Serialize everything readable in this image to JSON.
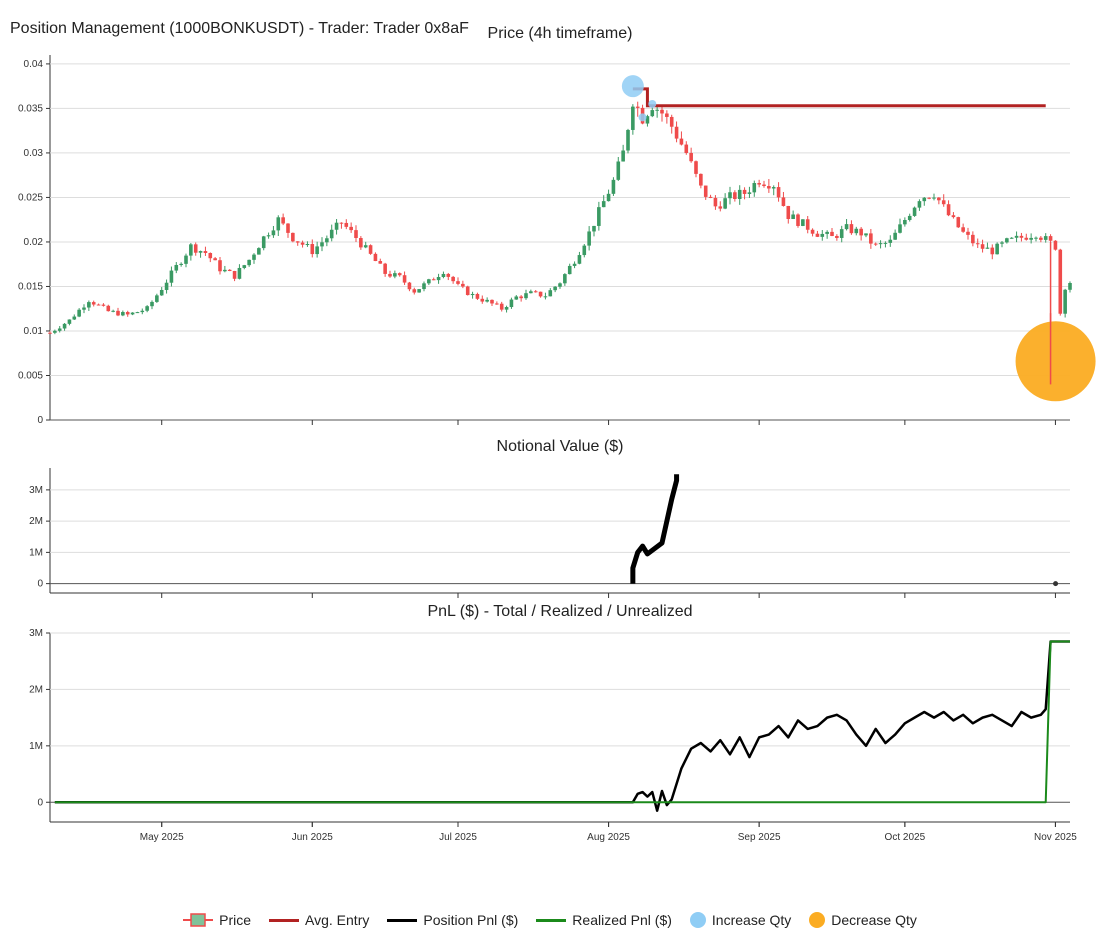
{
  "page_title": "Position Management (1000BONKUSDT) - Trader: Trader 0x8aF",
  "colors": {
    "up": "#3a9a63",
    "down": "#ef4b4b",
    "avg_entry": "#b22222",
    "position_pnl": "#000000",
    "realized_pnl": "#1b8a1b",
    "increase": "#8fcdf5",
    "decrease": "#fbac22",
    "grid": "#dddddd",
    "axis": "#333333"
  },
  "x_axis": {
    "ticks": [
      "May 2025",
      "Jun 2025",
      "Jul 2025",
      "Aug 2025",
      "Sep 2025",
      "Oct 2025",
      "Nov 2025"
    ],
    "tick_dates": [
      "2025-05-01",
      "2025-06-01",
      "2025-07-01",
      "2025-08-01",
      "2025-09-01",
      "2025-10-01",
      "2025-11-01"
    ],
    "range": [
      "2025-04-08",
      "2025-11-04"
    ]
  },
  "chart_data": [
    {
      "type": "candlestick",
      "title": "Price (4h timeframe)",
      "ylim": [
        0,
        0.041
      ],
      "yticks": [
        "0",
        "0.005",
        "0.01",
        "0.015",
        "0.02",
        "0.025",
        "0.03",
        "0.035",
        "0.04"
      ],
      "ytick_values": [
        0,
        0.005,
        0.01,
        0.015,
        0.02,
        0.025,
        0.03,
        0.035,
        0.04
      ],
      "price_points": [
        [
          "2025-04-08",
          0.0098
        ],
        [
          "2025-04-12",
          0.0112
        ],
        [
          "2025-04-16",
          0.0135
        ],
        [
          "2025-04-20",
          0.0122
        ],
        [
          "2025-04-24",
          0.0118
        ],
        [
          "2025-04-28",
          0.0125
        ],
        [
          "2025-05-01",
          0.0148
        ],
        [
          "2025-05-04",
          0.0172
        ],
        [
          "2025-05-07",
          0.0195
        ],
        [
          "2025-05-10",
          0.0188
        ],
        [
          "2025-05-13",
          0.017
        ],
        [
          "2025-05-16",
          0.0162
        ],
        [
          "2025-05-19",
          0.018
        ],
        [
          "2025-05-22",
          0.0205
        ],
        [
          "2025-05-25",
          0.0225
        ],
        [
          "2025-05-28",
          0.0205
        ],
        [
          "2025-06-01",
          0.019
        ],
        [
          "2025-06-04",
          0.0205
        ],
        [
          "2025-06-07",
          0.0222
        ],
        [
          "2025-06-10",
          0.0205
        ],
        [
          "2025-06-13",
          0.0185
        ],
        [
          "2025-06-16",
          0.0165
        ],
        [
          "2025-06-19",
          0.016
        ],
        [
          "2025-06-22",
          0.0145
        ],
        [
          "2025-06-25",
          0.0155
        ],
        [
          "2025-06-28",
          0.0168
        ],
        [
          "2025-07-01",
          0.015
        ],
        [
          "2025-07-04",
          0.014
        ],
        [
          "2025-07-07",
          0.0133
        ],
        [
          "2025-07-10",
          0.0125
        ],
        [
          "2025-07-13",
          0.0138
        ],
        [
          "2025-07-16",
          0.0142
        ],
        [
          "2025-07-19",
          0.014
        ],
        [
          "2025-07-22",
          0.0155
        ],
        [
          "2025-07-25",
          0.018
        ],
        [
          "2025-07-28",
          0.021
        ],
        [
          "2025-07-31",
          0.0245
        ],
        [
          "2025-08-02",
          0.0268
        ],
        [
          "2025-08-04",
          0.03
        ],
        [
          "2025-08-06",
          0.036
        ],
        [
          "2025-08-08",
          0.034
        ],
        [
          "2025-08-10",
          0.0355
        ],
        [
          "2025-08-12",
          0.0345
        ],
        [
          "2025-08-14",
          0.033
        ],
        [
          "2025-08-17",
          0.03
        ],
        [
          "2025-08-20",
          0.026
        ],
        [
          "2025-08-23",
          0.024
        ],
        [
          "2025-08-26",
          0.025
        ],
        [
          "2025-08-29",
          0.0255
        ],
        [
          "2025-09-01",
          0.027
        ],
        [
          "2025-09-04",
          0.0265
        ],
        [
          "2025-09-07",
          0.023
        ],
        [
          "2025-09-10",
          0.022
        ],
        [
          "2025-09-13",
          0.021
        ],
        [
          "2025-09-16",
          0.0205
        ],
        [
          "2025-09-19",
          0.0215
        ],
        [
          "2025-09-22",
          0.021
        ],
        [
          "2025-09-25",
          0.0195
        ],
        [
          "2025-09-28",
          0.02
        ],
        [
          "2025-10-01",
          0.0225
        ],
        [
          "2025-10-04",
          0.025
        ],
        [
          "2025-10-07",
          0.0255
        ],
        [
          "2025-10-10",
          0.023
        ],
        [
          "2025-10-13",
          0.021
        ],
        [
          "2025-10-16",
          0.0195
        ],
        [
          "2025-10-19",
          0.019
        ],
        [
          "2025-10-22",
          0.02
        ],
        [
          "2025-10-25",
          0.0205
        ],
        [
          "2025-10-28",
          0.021
        ],
        [
          "2025-11-01",
          0.0195
        ],
        [
          "2025-11-02",
          0.012
        ],
        [
          "2025-11-03",
          0.015
        ],
        [
          "2025-11-04",
          0.0155
        ]
      ],
      "avg_entry": {
        "from": "2025-08-06",
        "to": "2025-10-30",
        "level": 0.0353,
        "start_level": 0.0372
      },
      "increase_markers": [
        {
          "date": "2025-08-06",
          "price": 0.0375,
          "size": "large"
        },
        {
          "date": "2025-08-08",
          "price": 0.034,
          "size": "small"
        },
        {
          "date": "2025-08-10",
          "price": 0.0355,
          "size": "small"
        }
      ],
      "decrease_markers": [
        {
          "date": "2025-10-31",
          "price": 0.0066,
          "size": "large"
        }
      ]
    },
    {
      "type": "line",
      "title": "Notional Value ($)",
      "ylim": [
        -300000,
        3700000
      ],
      "yticks": [
        "0",
        "1M",
        "2M",
        "3M"
      ],
      "ytick_values": [
        0,
        1000000,
        2000000,
        3000000
      ],
      "series": [
        {
          "name": "Notional Value",
          "points": [
            [
              "2025-08-06",
              0
            ],
            [
              "2025-08-06",
              500000
            ],
            [
              "2025-08-07",
              1000000
            ],
            [
              "2025-08-08",
              1200000
            ],
            [
              "2025-08-09",
              950000
            ],
            [
              "2025-08-12",
              1300000
            ],
            [
              "2025-08-13",
              2000000
            ],
            [
              "2025-08-14",
              2700000
            ],
            [
              "2025-08-15",
              3300000
            ],
            [
              "2025-08-15",
              3500000
            ]
          ]
        }
      ],
      "dot": {
        "date": "2025-10-31",
        "value": 0
      }
    },
    {
      "type": "line",
      "title": "PnL ($) - Total / Realized / Unrealized",
      "ylim": [
        -350000,
        3000000
      ],
      "yticks": [
        "0",
        "1M",
        "2M",
        "3M"
      ],
      "ytick_values": [
        0,
        1000000,
        2000000,
        3000000
      ],
      "series": [
        {
          "name": "Position Pnl ($)",
          "points": [
            [
              "2025-04-09",
              0
            ],
            [
              "2025-08-06",
              0
            ],
            [
              "2025-08-07",
              150000
            ],
            [
              "2025-08-08",
              180000
            ],
            [
              "2025-08-09",
              100000
            ],
            [
              "2025-08-10",
              180000
            ],
            [
              "2025-08-11",
              -150000
            ],
            [
              "2025-08-12",
              200000
            ],
            [
              "2025-08-13",
              -50000
            ],
            [
              "2025-08-14",
              50000
            ],
            [
              "2025-08-16",
              600000
            ],
            [
              "2025-08-18",
              950000
            ],
            [
              "2025-08-20",
              1050000
            ],
            [
              "2025-08-22",
              900000
            ],
            [
              "2025-08-24",
              1100000
            ],
            [
              "2025-08-26",
              850000
            ],
            [
              "2025-08-28",
              1150000
            ],
            [
              "2025-08-30",
              800000
            ],
            [
              "2025-09-01",
              1150000
            ],
            [
              "2025-09-03",
              1200000
            ],
            [
              "2025-09-05",
              1350000
            ],
            [
              "2025-09-07",
              1150000
            ],
            [
              "2025-09-09",
              1450000
            ],
            [
              "2025-09-11",
              1300000
            ],
            [
              "2025-09-13",
              1350000
            ],
            [
              "2025-09-15",
              1500000
            ],
            [
              "2025-09-17",
              1550000
            ],
            [
              "2025-09-19",
              1450000
            ],
            [
              "2025-09-21",
              1200000
            ],
            [
              "2025-09-23",
              1000000
            ],
            [
              "2025-09-25",
              1300000
            ],
            [
              "2025-09-27",
              1050000
            ],
            [
              "2025-09-29",
              1200000
            ],
            [
              "2025-10-01",
              1400000
            ],
            [
              "2025-10-03",
              1500000
            ],
            [
              "2025-10-05",
              1600000
            ],
            [
              "2025-10-07",
              1500000
            ],
            [
              "2025-10-09",
              1600000
            ],
            [
              "2025-10-11",
              1450000
            ],
            [
              "2025-10-13",
              1550000
            ],
            [
              "2025-10-15",
              1400000
            ],
            [
              "2025-10-17",
              1500000
            ],
            [
              "2025-10-19",
              1550000
            ],
            [
              "2025-10-21",
              1450000
            ],
            [
              "2025-10-23",
              1350000
            ],
            [
              "2025-10-25",
              1600000
            ],
            [
              "2025-10-27",
              1500000
            ],
            [
              "2025-10-29",
              1550000
            ],
            [
              "2025-10-30",
              1650000
            ],
            [
              "2025-10-31",
              2850000
            ],
            [
              "2025-11-04",
              2850000
            ]
          ]
        },
        {
          "name": "Realized Pnl ($)",
          "points": [
            [
              "2025-04-09",
              0
            ],
            [
              "2025-10-30",
              0
            ],
            [
              "2025-10-31",
              2850000
            ],
            [
              "2025-11-04",
              2850000
            ]
          ]
        }
      ]
    }
  ],
  "legend": [
    {
      "label": "Price",
      "kind": "candle"
    },
    {
      "label": "Avg. Entry",
      "kind": "line",
      "color": "#b22222"
    },
    {
      "label": "Position Pnl ($)",
      "kind": "line",
      "color": "#000000"
    },
    {
      "label": "Realized Pnl ($)",
      "kind": "line",
      "color": "#1b8a1b"
    },
    {
      "label": "Increase Qty",
      "kind": "dot",
      "color": "#8fcdf5"
    },
    {
      "label": "Decrease Qty",
      "kind": "dot",
      "color": "#fbac22"
    }
  ]
}
